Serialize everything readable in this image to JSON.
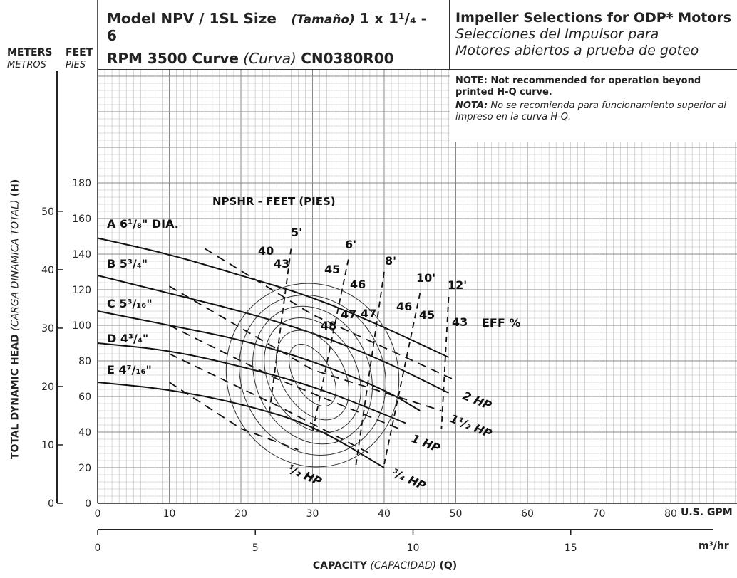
{
  "header": {
    "model_label": "Model NPV / 1SL Size",
    "size_label_es": "(Tamaño)",
    "size_value": "1 x 1¹/₄ - 6",
    "rpm_label": "RPM 3500 Curve",
    "curve_label_es": "(Curva)",
    "curve_id": "CN0380R00",
    "impeller_title": "Impeller Selections for ODP* Motors",
    "impeller_es_line1": "Selecciones del Impulsor para",
    "impeller_es_line2": "Motores abiertos a prueba de goteo",
    "note_en": "NOTE: Not recommended for operation beyond printed H-Q curve.",
    "note_es_label": "NOTA:",
    "note_es": " No se recomienda para funcionamiento superior al impreso en la curva H-Q."
  },
  "axes": {
    "meters_label": "METERS",
    "meters_es": "METROS",
    "feet_label": "FEET",
    "feet_es": "PIES",
    "head_title": "TOTAL DYNAMIC HEAD",
    "head_title_es": "(CARGA DINAMICA TOTAL)",
    "head_symbol": "(H)",
    "capacity_title": "CAPACITY",
    "capacity_title_es": "(CAPACIDAD)",
    "capacity_symbol": "(Q)",
    "gpm_unit": "U.S. GPM",
    "m3hr_unit": "m³/hr"
  },
  "chart_data": {
    "type": "line",
    "title": "Model NPV / 1SL Size (Tamaño) 1 x 1¹/₄ - 6 — RPM 3500 Curve (Curva) CN0380R00",
    "xlabel": "CAPACITY (CAPACIDAD) (Q)",
    "ylabel": "TOTAL DYNAMIC HEAD (CARGA DINAMICA TOTAL) (H)",
    "x_unit": "U.S. GPM",
    "y_unit": "FEET",
    "xlim": [
      0,
      89
    ],
    "ylim": [
      0,
      200
    ],
    "grid": true,
    "x_ticks_gpm": [
      "0",
      "10",
      "20",
      "30",
      "40",
      "50",
      "60",
      "70",
      "80"
    ],
    "x_ticks_m3hr": [
      "0",
      "5",
      "10",
      "15"
    ],
    "y_ticks_feet": [
      "0",
      "20",
      "40",
      "60",
      "80",
      "100",
      "120",
      "140",
      "160",
      "180"
    ],
    "y_ticks_meters": [
      "0",
      "10",
      "20",
      "30",
      "40",
      "50"
    ],
    "impellers": [
      {
        "name": "A 6¹/₈\" DIA.",
        "x": [
          0,
          10,
          20,
          30,
          40,
          49
        ],
        "y": [
          149,
          140,
          128,
          116,
          99,
          82
        ]
      },
      {
        "name": "B 5³/₄\"",
        "x": [
          0,
          10,
          20,
          30,
          40,
          49
        ],
        "y": [
          128,
          118,
          108,
          96,
          80,
          62
        ]
      },
      {
        "name": "C 5³/₁₆\"",
        "x": [
          0,
          10,
          20,
          30,
          40,
          45
        ],
        "y": [
          108,
          100,
          92,
          80,
          64,
          52
        ]
      },
      {
        "name": "D 4³/₄\"",
        "x": [
          0,
          10,
          20,
          30,
          40,
          43
        ],
        "y": [
          90,
          86,
          77,
          66,
          50,
          45
        ]
      },
      {
        "name": "E 4⁷/₁₆\"",
        "x": [
          0,
          10,
          20,
          30,
          40
        ],
        "y": [
          68,
          64,
          56,
          44,
          20
        ]
      }
    ],
    "horsepower_lines": [
      {
        "name": "2 HP",
        "x": [
          15,
          30,
          50
        ],
        "y": [
          143,
          106,
          69
        ]
      },
      {
        "name": "1¹/₂ HP",
        "x": [
          10,
          30,
          48
        ],
        "y": [
          122,
          75,
          52
        ]
      },
      {
        "name": "1 HP",
        "x": [
          10,
          25,
          42
        ],
        "y": [
          100,
          70,
          42
        ]
      },
      {
        "name": "¹/₂ HP",
        "x": [
          10,
          20,
          28
        ],
        "y": [
          68,
          42,
          30
        ]
      },
      {
        "name": "³/₄ HP",
        "x": [
          10,
          25,
          38
        ],
        "y": [
          84,
          55,
          28
        ]
      }
    ],
    "npshr_label": "NPSHR - FEET (PIES)",
    "npshr_lines": [
      {
        "name": "5'",
        "x": [
          27,
          24
        ],
        "y": [
          143,
          52
        ]
      },
      {
        "name": "6'",
        "x": [
          35,
          30
        ],
        "y": [
          137,
          40
        ]
      },
      {
        "name": "8'",
        "x": [
          40,
          36
        ],
        "y": [
          130,
          20
        ]
      },
      {
        "name": "10'",
        "x": [
          45,
          40
        ],
        "y": [
          118,
          22
        ]
      },
      {
        "name": "12'",
        "x": [
          49,
          48
        ],
        "y": [
          116,
          42
        ]
      }
    ],
    "efficiency_contours": [
      "40",
      "43",
      "45",
      "46",
      "47",
      "48",
      "47",
      "46",
      "45",
      "43"
    ],
    "efficiency_label": "43 EFF %"
  }
}
